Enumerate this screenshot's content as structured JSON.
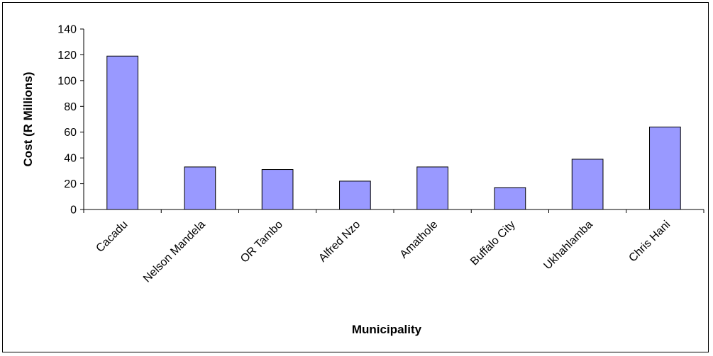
{
  "chart_data": {
    "type": "bar",
    "title": "",
    "xlabel": "Municipality",
    "ylabel": "Cost (R Millions)",
    "categories": [
      "Cacadu",
      "Nelson Mandela",
      "OR Tambo",
      "Alfred Nzo",
      "Amathole",
      "Buffalo City",
      "Ukhahlamba",
      "Chris Hani"
    ],
    "values": [
      119,
      33,
      31,
      22,
      33,
      17,
      39,
      64
    ],
    "ylim": [
      0,
      140
    ],
    "yticks": [
      0,
      20,
      40,
      60,
      80,
      100,
      120,
      140
    ],
    "grid": false,
    "legend": "none",
    "bar_color": "#9999ff",
    "bar_stroke": "#000000"
  }
}
